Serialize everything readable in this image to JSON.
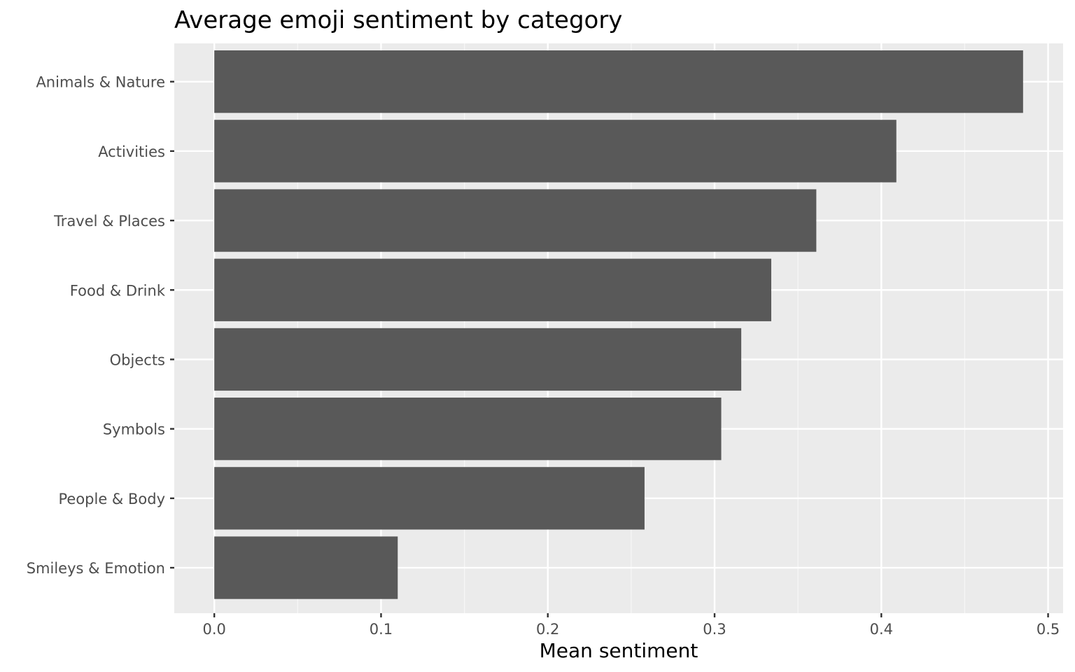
{
  "colors": {
    "panel_background": "#ebebeb",
    "grid_major": "#ffffff",
    "grid_minor": "#f7f7f7",
    "bar_fill": "#595959",
    "tick_mark": "#333333",
    "tick_label": "#4d4d4d"
  },
  "chart_data": {
    "type": "bar",
    "orientation": "horizontal",
    "title": "Average emoji sentiment by category",
    "xlabel": "Mean sentiment",
    "ylabel": "",
    "categories": [
      "Animals & Nature",
      "Activities",
      "Travel & Places",
      "Food & Drink",
      "Objects",
      "Symbols",
      "People & Body",
      "Smileys & Emotion"
    ],
    "values": [
      0.485,
      0.409,
      0.361,
      0.334,
      0.316,
      0.304,
      0.258,
      0.11
    ],
    "xlim": [
      -0.024,
      0.509
    ],
    "x_ticks": [
      0.0,
      0.1,
      0.2,
      0.3,
      0.4,
      0.5
    ],
    "x_tick_labels": [
      "0.0",
      "0.1",
      "0.2",
      "0.3",
      "0.4",
      "0.5"
    ],
    "x_minor_ticks": [
      0.05,
      0.15,
      0.25,
      0.35,
      0.45
    ],
    "grid": true,
    "legend": "none"
  }
}
